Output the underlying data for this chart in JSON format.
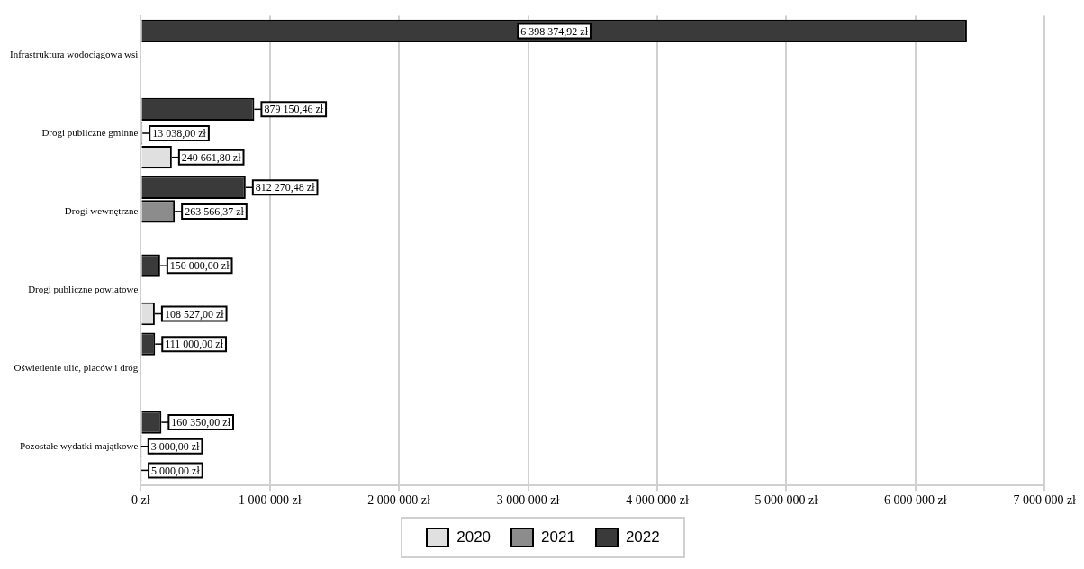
{
  "chart_data": {
    "type": "bar",
    "orientation": "horizontal",
    "categories": [
      "Infrastruktura wodociągowa wsi",
      "Drogi publiczne gminne",
      "Drogi wewnętrzne",
      "Drogi publiczne powiatowe",
      "Oświetlenie ulic, placów i dróg",
      "Pozostałe wydatki majątkowe"
    ],
    "series": [
      {
        "name": "2020",
        "color": "#e0e0e0",
        "values": [
          null,
          240661.8,
          null,
          108527.0,
          null,
          5000.0
        ],
        "value_labels": [
          null,
          "240 661,80 zł",
          null,
          "108 527,00 zł",
          null,
          "5 000,00 zł"
        ]
      },
      {
        "name": "2021",
        "color": "#8c8c8c",
        "values": [
          null,
          13038.0,
          263566.37,
          null,
          null,
          3000.0
        ],
        "value_labels": [
          null,
          "13 038,00 zł",
          "263 566,37 zł",
          null,
          null,
          "3 000,00 zł"
        ]
      },
      {
        "name": "2022",
        "color": "#3a3a3a",
        "values": [
          6398374.92,
          879150.46,
          812270.48,
          150000.0,
          111000.0,
          160350.0
        ],
        "value_labels": [
          "6 398 374,92 zł",
          "879 150,46 zł",
          "812 270,48 zł",
          "150 000,00 zł",
          "111 000,00 zł",
          "160 350,00 zł"
        ]
      }
    ],
    "xlim": [
      0,
      7000000
    ],
    "xticks": [
      {
        "value": 0,
        "label": "0 zł"
      },
      {
        "value": 1000000,
        "label": "1 000 000 zł"
      },
      {
        "value": 2000000,
        "label": "2 000 000 zł"
      },
      {
        "value": 3000000,
        "label": "3 000 000 zł"
      },
      {
        "value": 4000000,
        "label": "4 000 000 zł"
      },
      {
        "value": 5000000,
        "label": "5 000 000 zł"
      },
      {
        "value": 6000000,
        "label": "6 000 000 zł"
      },
      {
        "value": 7000000,
        "label": "7 000 000 zł"
      }
    ],
    "grid": "x",
    "legend": "bottom"
  }
}
